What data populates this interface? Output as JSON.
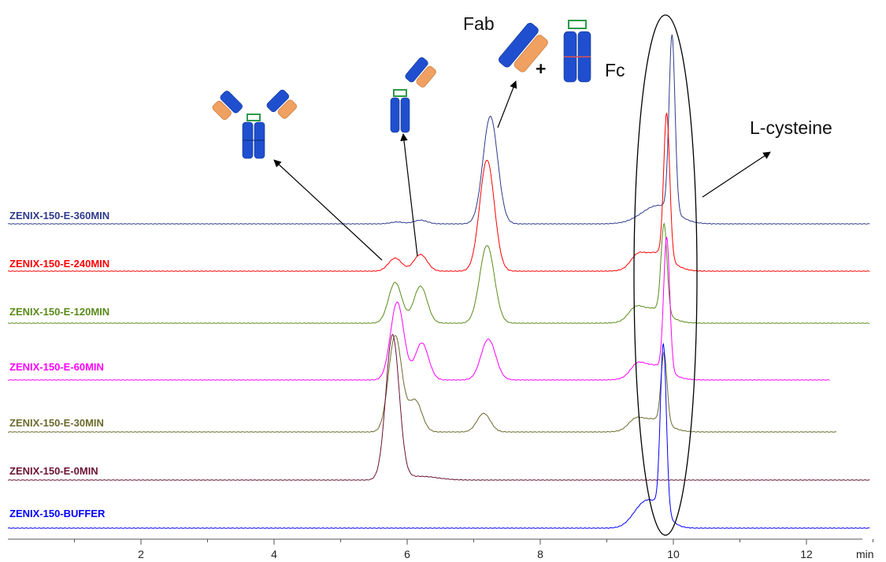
{
  "chart_data": {
    "type": "line",
    "title": "",
    "xlabel": "",
    "x_unit": "min",
    "xlim": [
      0,
      13
    ],
    "x_ticks": [
      "2",
      "4",
      "6",
      "8",
      "10",
      "12"
    ],
    "series": [
      {
        "name": "ZENIX-150-E-360MIN",
        "color": "#2e3a8c",
        "x_end": 12.95,
        "baseline": 0.0,
        "peaks": [
          {
            "x": 5.85,
            "y": 0.01,
            "w": 0.1
          },
          {
            "x": 6.2,
            "y": 0.02,
            "w": 0.1
          },
          {
            "x": 7.25,
            "y": 0.58,
            "w": 0.11
          },
          {
            "x": 9.78,
            "y": 0.1,
            "w": 0.25
          },
          {
            "x": 9.98,
            "y": 0.95,
            "w": 0.045
          }
        ]
      },
      {
        "name": "ZENIX-150-E-240MIN",
        "color": "#ff0000",
        "x_end": 12.95,
        "baseline": 0.0,
        "peaks": [
          {
            "x": 5.82,
            "y": 0.07,
            "w": 0.1
          },
          {
            "x": 6.2,
            "y": 0.09,
            "w": 0.1
          },
          {
            "x": 7.2,
            "y": 0.6,
            "w": 0.11
          },
          {
            "x": 9.45,
            "y": 0.05,
            "w": 0.1
          },
          {
            "x": 9.73,
            "y": 0.1,
            "w": 0.22
          },
          {
            "x": 9.9,
            "y": 0.78,
            "w": 0.045
          }
        ]
      },
      {
        "name": "ZENIX-150-E-120MIN",
        "color": "#5a8a1a",
        "x_end": 12.95,
        "baseline": 0.0,
        "peaks": [
          {
            "x": 5.82,
            "y": 0.22,
            "w": 0.1
          },
          {
            "x": 6.2,
            "y": 0.2,
            "w": 0.1
          },
          {
            "x": 7.2,
            "y": 0.42,
            "w": 0.11
          },
          {
            "x": 9.42,
            "y": 0.05,
            "w": 0.1
          },
          {
            "x": 9.68,
            "y": 0.08,
            "w": 0.22
          },
          {
            "x": 9.86,
            "y": 0.48,
            "w": 0.045
          }
        ]
      },
      {
        "name": "ZENIX-150-E-60MIN",
        "color": "#ff00ff",
        "x_end": 12.35,
        "baseline": 0.0,
        "peaks": [
          {
            "x": 5.85,
            "y": 0.42,
            "w": 0.1
          },
          {
            "x": 6.22,
            "y": 0.2,
            "w": 0.1
          },
          {
            "x": 7.22,
            "y": 0.22,
            "w": 0.11
          },
          {
            "x": 9.45,
            "y": 0.05,
            "w": 0.1
          },
          {
            "x": 9.7,
            "y": 0.08,
            "w": 0.22
          },
          {
            "x": 9.9,
            "y": 0.72,
            "w": 0.045
          }
        ]
      },
      {
        "name": "ZENIX-150-E-30MIN",
        "color": "#6b6b2e",
        "x_end": 12.45,
        "baseline": 0.0,
        "peaks": [
          {
            "x": 5.82,
            "y": 0.52,
            "w": 0.1
          },
          {
            "x": 6.12,
            "y": 0.17,
            "w": 0.1
          },
          {
            "x": 7.15,
            "y": 0.1,
            "w": 0.1
          },
          {
            "x": 9.42,
            "y": 0.04,
            "w": 0.1
          },
          {
            "x": 9.68,
            "y": 0.07,
            "w": 0.22
          },
          {
            "x": 9.86,
            "y": 0.38,
            "w": 0.045
          }
        ]
      },
      {
        "name": "ZENIX-150-E-0MIN",
        "color": "#6b1232",
        "x_end": 12.95,
        "baseline": 0.0,
        "peaks": [
          {
            "x": 5.78,
            "y": 0.78,
            "w": 0.1
          },
          {
            "x": 6.2,
            "y": 0.02,
            "w": 0.25
          }
        ]
      },
      {
        "name": "ZENIX-150-BUFFER",
        "color": "#0000ff",
        "x_end": 12.95,
        "baseline": 0.0,
        "peaks": [
          {
            "x": 9.5,
            "y": 0.07,
            "w": 0.15
          },
          {
            "x": 9.72,
            "y": 0.12,
            "w": 0.18
          },
          {
            "x": 9.85,
            "y": 0.9,
            "w": 0.045
          }
        ]
      }
    ],
    "annotations": {
      "fab": "Fab",
      "plus": "+",
      "fc": "Fc",
      "lcys": "L-cysteine"
    }
  },
  "colors": {
    "igg_blue": "#1f4fcf",
    "fab_orange": "#f0a060",
    "hinge_green": "#2e9a4a",
    "fc_red": "#e05050"
  }
}
